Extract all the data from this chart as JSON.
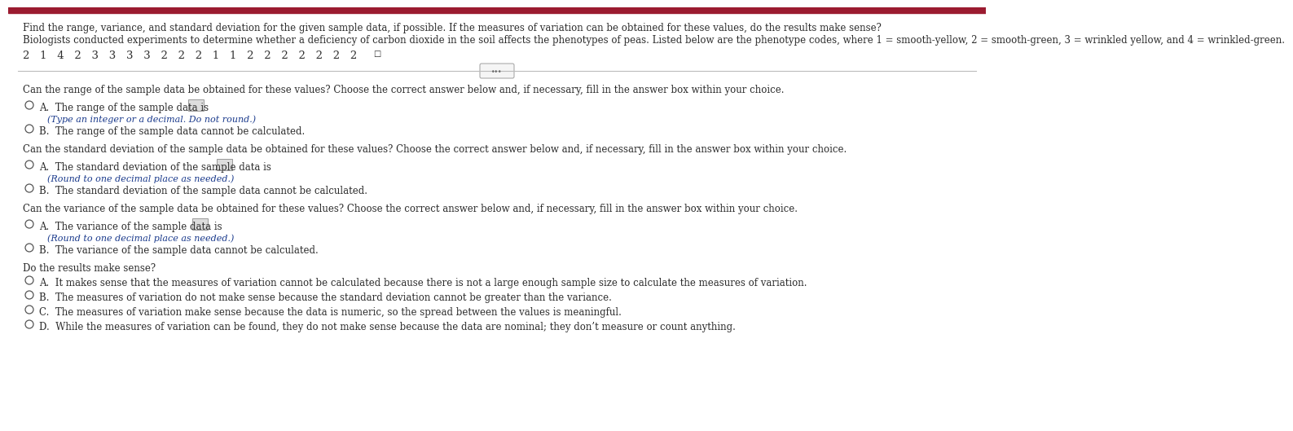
{
  "top_bar_color": "#9B1B30",
  "bg_color": "#ffffff",
  "text_color": "#2d2d2d",
  "radio_color": "#555555",
  "italic_color": "#1a3a8c",
  "option_color": "#2d2d2d",
  "title_text": "Find the range, variance, and standard deviation for the given sample data, if possible. If the measures of variation can be obtained for these values, do the results make sense?",
  "bio_text": "Biologists conducted experiments to determine whether a deficiency of carbon dioxide in the soil affects the phenotypes of peas. Listed below are the phenotype codes, where 1 = smooth-yellow, 2 = smooth-green, 3 = wrinkled yellow, and 4 = wrinkled-green.",
  "data_values": "2   1   4   2   3   3   3   3   2   2   2   1   1   2   2   2   2   2   2   2",
  "q1_text": "Can the range of the sample data be obtained for these values? Choose the correct answer below and, if necessary, fill in the answer box within your choice.",
  "q1_A_main": "A.  The range of the sample data is",
  "q1_A_sub": "(Type an integer or a decimal. Do not round.)",
  "q1_B": "B.  The range of the sample data cannot be calculated.",
  "q2_text": "Can the standard deviation of the sample data be obtained for these values? Choose the correct answer below and, if necessary, fill in the answer box within your choice.",
  "q2_A_main": "A.  The standard deviation of the sample data is",
  "q2_A_sub": "(Round to one decimal place as needed.)",
  "q2_B": "B.  The standard deviation of the sample data cannot be calculated.",
  "q3_text": "Can the variance of the sample data be obtained for these values? Choose the correct answer below and, if necessary, fill in the answer box within your choice.",
  "q3_A_main": "A.  The variance of the sample data is",
  "q3_A_sub": "(Round to one decimal place as needed.)",
  "q3_B": "B.  The variance of the sample data cannot be calculated.",
  "q4_text": "Do the results make sense?",
  "q4_A": "A.  It makes sense that the measures of variation cannot be calculated because there is not a large enough sample size to calculate the measures of variation.",
  "q4_B": "B.  The measures of variation do not make sense because the standard deviation cannot be greater than the variance.",
  "q4_C": "C.  The measures of variation make sense because the data is numeric, so the spread between the values is meaningful.",
  "q4_D": "D.  While the measures of variation can be found, they do not make sense because the data are nominal; they don’t measure or count anything.",
  "fs": 8.5,
  "fs_title": 8.5,
  "fs_data": 9.5
}
